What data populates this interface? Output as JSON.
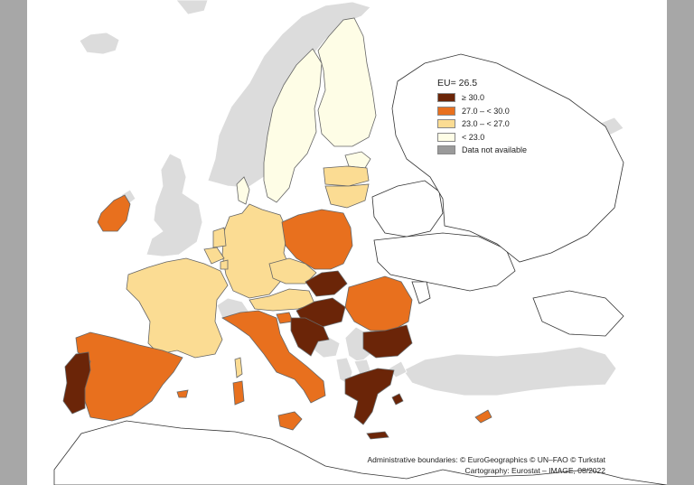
{
  "legend": {
    "title": "EU= 26.5",
    "items": [
      {
        "label": "≥ 30.0",
        "color": "#6b2508"
      },
      {
        "label": "27.0 – < 30.0",
        "color": "#e8701e"
      },
      {
        "label": "23.0 – < 27.0",
        "color": "#fbdc93"
      },
      {
        "label": "< 23.0",
        "color": "#fefde6"
      },
      {
        "label": "Data not available",
        "color": "#9a9a9a"
      }
    ]
  },
  "colors": {
    "sea": "#ffffff",
    "non_eu": "#dcdcdc",
    "outline_only": "#ffffff",
    "border": "#666666",
    "class_high": "#6b2508",
    "class_mid_high": "#e8701e",
    "class_mid_low": "#fbdc93",
    "class_low": "#fefde6"
  },
  "credits": {
    "line1": "Administrative boundaries: © EuroGeographics © UN–FAO © Turkstat",
    "line2": "Cartography: Eurostat – IMAGE, 08/2022"
  }
}
